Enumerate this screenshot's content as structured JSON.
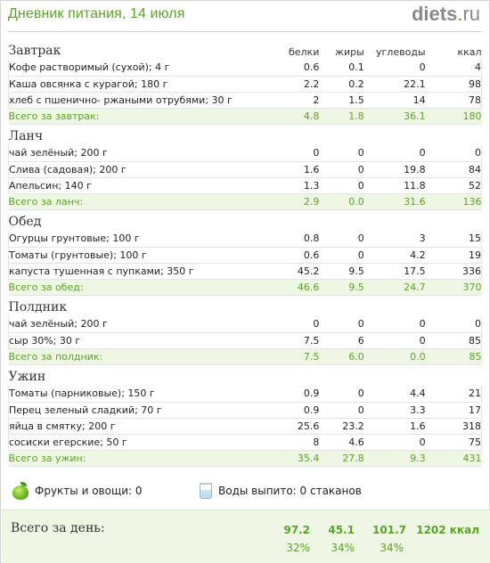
{
  "header": {
    "title": "Дневник питания, 14 июля",
    "brand_name": "diets",
    "brand_dot": ".",
    "brand_tld": "ru"
  },
  "columns": {
    "protein": "белки",
    "fat": "жиры",
    "carbs": "углеводы",
    "kcal": "ккал"
  },
  "meals": [
    {
      "name": "Завтрак",
      "items": [
        {
          "name": "Кофе растворимый (сухой); 4 г",
          "protein": "0.6",
          "fat": "0.1",
          "carbs": "0",
          "kcal": "4"
        },
        {
          "name": "Каша овсянка с курагой; 180 г",
          "protein": "2.2",
          "fat": "0.2",
          "carbs": "22.1",
          "kcal": "98"
        },
        {
          "name": "хлеб с пшенично- ржаными отрубями; 30 г",
          "protein": "2",
          "fat": "1.5",
          "carbs": "14",
          "kcal": "78"
        }
      ],
      "total": {
        "label": "Всего за завтрак:",
        "protein": "4.8",
        "fat": "1.8",
        "carbs": "36.1",
        "kcal": "180"
      }
    },
    {
      "name": "Ланч",
      "items": [
        {
          "name": "чай зелёный; 200 г",
          "protein": "0",
          "fat": "0",
          "carbs": "0",
          "kcal": "0"
        },
        {
          "name": "Слива (садовая); 200 г",
          "protein": "1.6",
          "fat": "0",
          "carbs": "19.8",
          "kcal": "84"
        },
        {
          "name": "Апельсин; 140 г",
          "protein": "1.3",
          "fat": "0",
          "carbs": "11.8",
          "kcal": "52"
        }
      ],
      "total": {
        "label": "Всего за ланч:",
        "protein": "2.9",
        "fat": "0.0",
        "carbs": "31.6",
        "kcal": "136"
      }
    },
    {
      "name": "Обед",
      "items": [
        {
          "name": "Огурцы грунтовые; 100 г",
          "protein": "0.8",
          "fat": "0",
          "carbs": "3",
          "kcal": "15"
        },
        {
          "name": "Томаты (грунтовые); 100 г",
          "protein": "0.6",
          "fat": "0",
          "carbs": "4.2",
          "kcal": "19"
        },
        {
          "name": "капуста тушенная с пупками; 350 г",
          "protein": "45.2",
          "fat": "9.5",
          "carbs": "17.5",
          "kcal": "336"
        }
      ],
      "total": {
        "label": "Всего за обед:",
        "protein": "46.6",
        "fat": "9.5",
        "carbs": "24.7",
        "kcal": "370"
      }
    },
    {
      "name": "Полдник",
      "items": [
        {
          "name": "чай зелёный; 200 г",
          "protein": "0",
          "fat": "0",
          "carbs": "0",
          "kcal": "0"
        },
        {
          "name": "сыр 30%; 30 г",
          "protein": "7.5",
          "fat": "6",
          "carbs": "0",
          "kcal": "85"
        }
      ],
      "total": {
        "label": "Всего за полдник:",
        "protein": "7.5",
        "fat": "6.0",
        "carbs": "0.0",
        "kcal": "85"
      }
    },
    {
      "name": "Ужин",
      "items": [
        {
          "name": "Томаты (парниковые); 150 г",
          "protein": "0.9",
          "fat": "0",
          "carbs": "4.4",
          "kcal": "21"
        },
        {
          "name": "Перец зеленый сладкий; 70 г",
          "protein": "0.9",
          "fat": "0",
          "carbs": "3.3",
          "kcal": "17"
        },
        {
          "name": "яйца в смятку; 200 г",
          "protein": "25.6",
          "fat": "23.2",
          "carbs": "1.6",
          "kcal": "318"
        },
        {
          "name": "сосиски егерские; 50 г",
          "protein": "8",
          "fat": "4.6",
          "carbs": "0",
          "kcal": "75"
        }
      ],
      "total": {
        "label": "Всего за ужин:",
        "protein": "35.4",
        "fat": "27.8",
        "carbs": "9.3",
        "kcal": "431"
      }
    }
  ],
  "extras": {
    "fruits_label": "Фрукты и овощи: 0",
    "water_label": "Воды выпито: 0 стаканов",
    "fruits_icon": "apple-icon",
    "water_icon": "water-glass-icon"
  },
  "day_total": {
    "label": "Всего за день:",
    "protein": "97.2",
    "fat": "45.1",
    "carbs": "101.7",
    "kcal": "1202 ккал",
    "protein_pct": "32%",
    "fat_pct": "34%",
    "carbs_pct": "34%"
  },
  "colors": {
    "accent": "#5ba423",
    "total_bg": "#eef7e4",
    "brand_gray": "#8a8a8a"
  }
}
